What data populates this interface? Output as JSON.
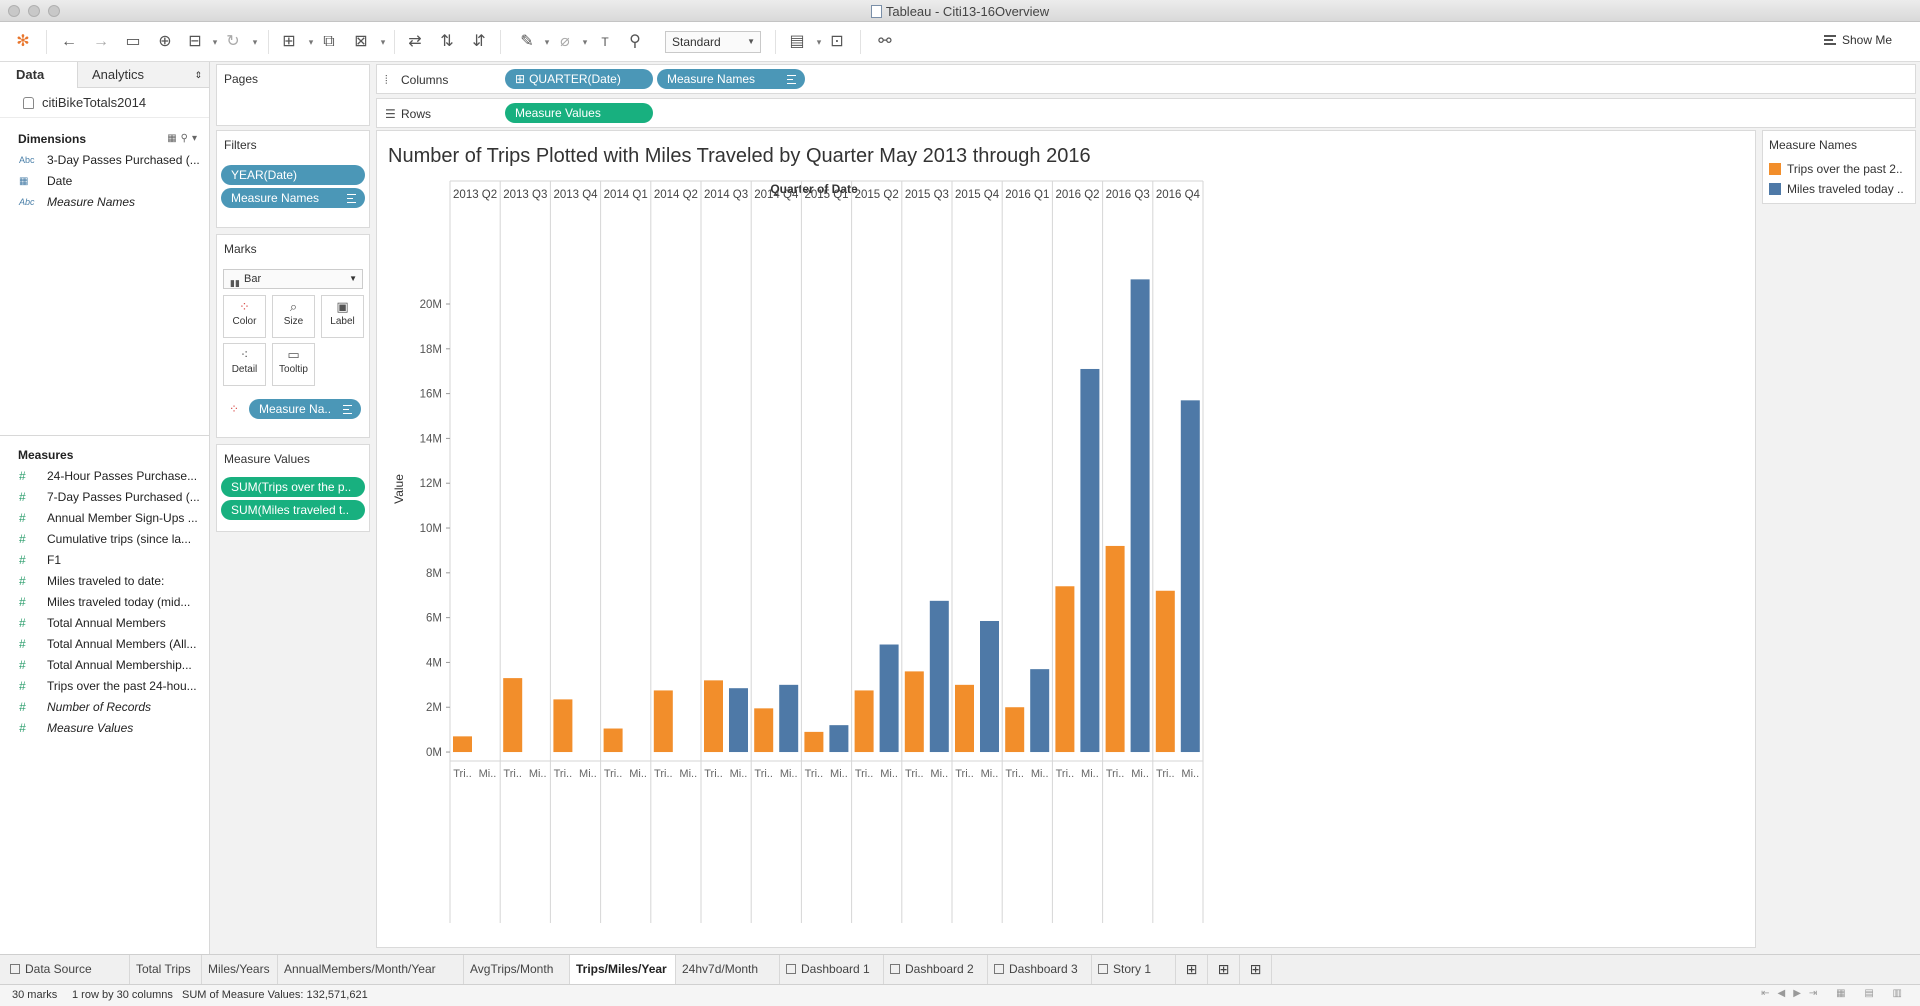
{
  "window": {
    "title": "Tableau - Citi13-16Overview"
  },
  "toolbar": {
    "view_mode": "Standard",
    "show_me": "Show Me"
  },
  "data_pane": {
    "tabs": [
      "Data",
      "Analytics"
    ],
    "datasource": "citiBikeTotals2014",
    "dimensions_title": "Dimensions",
    "dimensions": [
      {
        "type": "Abc",
        "label": "3-Day Passes Purchased (...",
        "italic": false
      },
      {
        "type": "date",
        "label": "Date",
        "italic": false
      },
      {
        "type": "Abc",
        "label": "Measure Names",
        "italic": true
      }
    ],
    "measures_title": "Measures",
    "measures": [
      {
        "label": "24-Hour Passes Purchase...",
        "italic": false
      },
      {
        "label": "7-Day Passes Purchased (...",
        "italic": false
      },
      {
        "label": "Annual Member Sign-Ups ...",
        "italic": false
      },
      {
        "label": "Cumulative trips (since la...",
        "italic": false
      },
      {
        "label": "F1",
        "italic": false
      },
      {
        "label": "Miles traveled to date:",
        "italic": false
      },
      {
        "label": "Miles traveled today (mid...",
        "italic": false
      },
      {
        "label": "Total Annual Members",
        "italic": false
      },
      {
        "label": "Total Annual Members (All...",
        "italic": false
      },
      {
        "label": "Total Annual Membership...",
        "italic": false
      },
      {
        "label": "Trips over the past 24-hou...",
        "italic": false
      },
      {
        "label": "Number of Records",
        "italic": true
      },
      {
        "label": "Measure Values",
        "italic": true
      }
    ]
  },
  "cards": {
    "pages_title": "Pages",
    "filters_title": "Filters",
    "filters": [
      "YEAR(Date)",
      "Measure Names"
    ],
    "marks_title": "Marks",
    "mark_type": "Bar",
    "mark_buttons": [
      "Color",
      "Size",
      "Label",
      "Detail",
      "Tooltip"
    ],
    "marks_pill": "Measure Na..",
    "measure_values_title": "Measure Values",
    "measure_values": [
      "SUM(Trips over the p..",
      "SUM(Miles traveled t.."
    ]
  },
  "shelves": {
    "columns_label": "Columns",
    "columns": [
      "QUARTER(Date)",
      "Measure Names"
    ],
    "rows_label": "Rows",
    "rows": [
      "Measure Values"
    ]
  },
  "legend": {
    "title": "Measure Names",
    "items": [
      {
        "label": "Trips over the past 2..",
        "color": "#f28e2b"
      },
      {
        "label": "Miles traveled today ..",
        "color": "#4e79a7"
      }
    ]
  },
  "chart_data": {
    "type": "bar",
    "title": "Number of Trips Plotted with Miles Traveled by Quarter May 2013 through 2016",
    "xlabel": "Quarter of Date",
    "ylabel": "Value",
    "categories": [
      "2013 Q2",
      "2013 Q3",
      "2013 Q4",
      "2014 Q1",
      "2014 Q2",
      "2014 Q3",
      "2014 Q4",
      "2015 Q1",
      "2015 Q2",
      "2015 Q3",
      "2015 Q4",
      "2016 Q1",
      "2016 Q2",
      "2016 Q3",
      "2016 Q4"
    ],
    "sub_labels": [
      "Tri..",
      "Mi.."
    ],
    "series": [
      {
        "name": "Trips over the past 2..",
        "color": "#f28e2b",
        "values": [
          700000,
          3300000,
          2350000,
          1050000,
          2750000,
          3200000,
          1950000,
          900000,
          2750000,
          3600000,
          3000000,
          2000000,
          7400000,
          9200000,
          7200000
        ]
      },
      {
        "name": "Miles traveled today ..",
        "color": "#4e79a7",
        "values": [
          null,
          null,
          null,
          null,
          null,
          2850000,
          3000000,
          1200000,
          4800000,
          6750000,
          5850000,
          3700000,
          17100000,
          21100000,
          15700000
        ]
      }
    ],
    "yticks": [
      0,
      2000000,
      4000000,
      6000000,
      8000000,
      10000000,
      12000000,
      14000000,
      16000000,
      18000000,
      20000000
    ],
    "ytick_labels": [
      "0M",
      "2M",
      "4M",
      "6M",
      "8M",
      "10M",
      "12M",
      "14M",
      "16M",
      "18M",
      "20M"
    ],
    "ylim": [
      -400000,
      22500000
    ]
  },
  "sheet_tabs": [
    {
      "label": "Data Source",
      "active": false,
      "icon": "datasource"
    },
    {
      "label": "Total Trips",
      "active": false,
      "icon": ""
    },
    {
      "label": "Miles/Years",
      "active": false,
      "icon": ""
    },
    {
      "label": "AnnualMembers/Month/Year",
      "active": false,
      "icon": ""
    },
    {
      "label": "AvgTrips/Month",
      "active": false,
      "icon": ""
    },
    {
      "label": "Trips/Miles/Year",
      "active": true,
      "icon": ""
    },
    {
      "label": "24hv7d/Month",
      "active": false,
      "icon": ""
    },
    {
      "label": "Dashboard 1",
      "active": false,
      "icon": "dashboard"
    },
    {
      "label": "Dashboard 2",
      "active": false,
      "icon": "dashboard"
    },
    {
      "label": "Dashboard 3",
      "active": false,
      "icon": "dashboard"
    },
    {
      "label": "Story 1",
      "active": false,
      "icon": "story"
    }
  ],
  "status": {
    "marks": "30 marks",
    "dims": "1 row by 30 columns",
    "sum": "SUM of Measure Values: 132,571,621"
  }
}
